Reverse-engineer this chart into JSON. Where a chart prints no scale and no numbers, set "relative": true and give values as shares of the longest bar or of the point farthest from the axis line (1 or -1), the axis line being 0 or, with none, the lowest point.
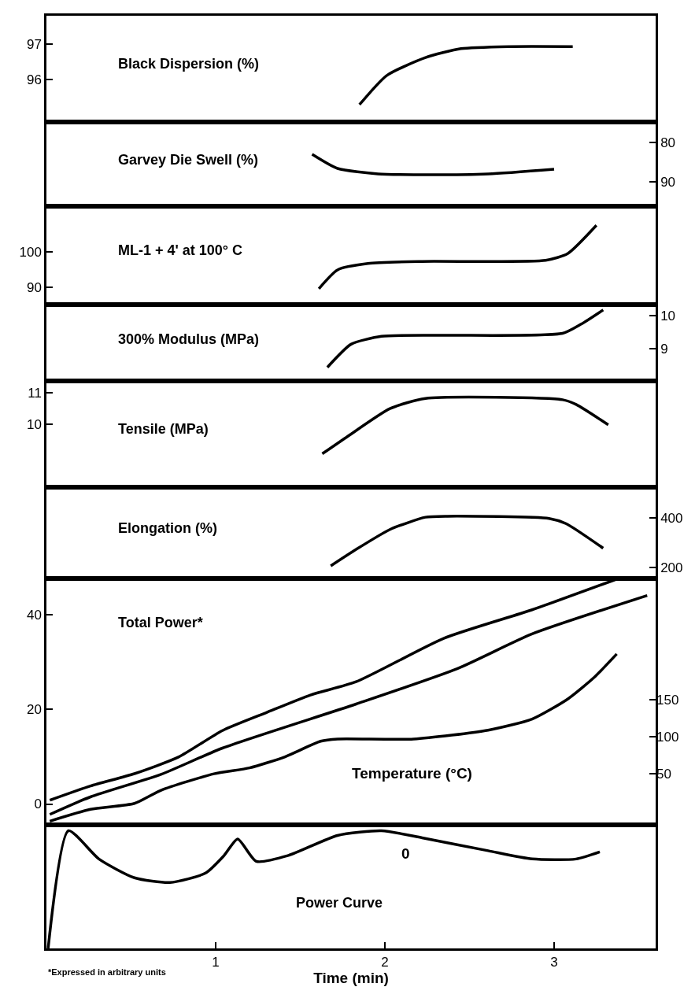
{
  "chart_data": [
    {
      "type": "line",
      "title": "Black Dispersion (%)",
      "xlim": [
        0,
        3.6
      ],
      "ylim": [
        94.8,
        97.8
      ],
      "yticks": [
        96,
        97
      ],
      "tick_labels": "y",
      "series": [
        {
          "color": "#000000",
          "x": [
            1.85,
            2.01,
            2.24,
            2.45,
            2.74,
            3.11
          ],
          "values": [
            95.29,
            96.11,
            96.62,
            96.87,
            96.93,
            96.93
          ]
        }
      ]
    },
    {
      "type": "line",
      "title": "Garvey Die Swell (%)",
      "xlim": [
        0,
        3.6
      ],
      "y2lim": [
        96.2,
        74.8
      ],
      "y2ticks": [
        80,
        90
      ],
      "tick_labels": "y",
      "series": [
        {
          "color": "#000000",
          "axis": "y2",
          "x": [
            1.57,
            1.72,
            1.96,
            2.17,
            2.61,
            3.0
          ],
          "values": [
            83,
            86.6,
            88,
            88.2,
            88,
            86.8
          ]
        }
      ]
    },
    {
      "type": "line",
      "title": "ML-1 + 4' at 100° C",
      "xlim": [
        0,
        3.6
      ],
      "ylim": [
        85.2,
        113
      ],
      "yticks": [
        90,
        100
      ],
      "tick_labels": "y",
      "series": [
        {
          "color": "#000000",
          "x": [
            1.61,
            1.72,
            1.9,
            2.22,
            2.95,
            3.08,
            3.25
          ],
          "values": [
            89.7,
            95,
            96.8,
            97.4,
            97.7,
            99.6,
            107.6
          ]
        }
      ]
    },
    {
      "type": "line",
      "title": "300% Modulus (MPa)",
      "xlim": [
        0,
        3.6
      ],
      "y2lim": [
        8.02,
        10.33
      ],
      "y2ticks": [
        9,
        10
      ],
      "tick_labels": "y",
      "series": [
        {
          "color": "#000000",
          "axis": "y2",
          "x": [
            1.66,
            1.8,
            1.98,
            2.35,
            3.05,
            3.16,
            3.29
          ],
          "values": [
            8.43,
            9.13,
            9.37,
            9.4,
            9.46,
            9.74,
            10.17
          ]
        }
      ]
    },
    {
      "type": "line",
      "title": "Tensile (MPa)",
      "xlim": [
        0,
        3.6
      ],
      "ylim": [
        8.02,
        11.36
      ],
      "yticks": [
        10,
        11
      ],
      "tick_labels": "y",
      "series": [
        {
          "color": "#000000",
          "x": [
            1.63,
            1.77,
            2.03,
            2.24,
            3.05,
            3.13,
            3.32
          ],
          "values": [
            9.07,
            9.58,
            10.49,
            10.81,
            10.77,
            10.62,
            9.98
          ]
        }
      ]
    },
    {
      "type": "line",
      "title": "Elongation (%)",
      "xlim": [
        0,
        3.6
      ],
      "y2lim": [
        155,
        526
      ],
      "y2ticks": [
        200,
        400
      ],
      "tick_labels": "y",
      "series": [
        {
          "color": "#000000",
          "axis": "y2",
          "x": [
            1.68,
            1.83,
            2.03,
            2.24,
            2.37,
            2.97,
            3.07,
            3.29
          ],
          "values": [
            206,
            273,
            354,
            404,
            408,
            399,
            378,
            278
          ]
        }
      ]
    },
    {
      "type": "line",
      "title": "Total Power*",
      "xlim": [
        0,
        3.6
      ],
      "ylim": [
        -4.4,
        47.6
      ],
      "yticks": [
        0,
        20,
        40
      ],
      "y2lim": [
        -19,
        314
      ],
      "y2ticks": [
        50,
        100,
        150
      ],
      "tick_labels": "y",
      "annotations": [
        "Temperature (°C)"
      ],
      "series": [
        {
          "color": "#000000",
          "x": [
            0.02,
            0.26,
            0.52,
            0.78,
            1.04,
            1.3,
            1.56,
            1.83,
            2.35,
            2.87,
            3.38
          ],
          "values": [
            0.8,
            3.8,
            6.4,
            9.9,
            15.5,
            19.3,
            23,
            25.8,
            35,
            41,
            47.6
          ]
        },
        {
          "color": "#000000",
          "x": [
            0.02,
            0.26,
            0.68,
            1.04,
            1.83,
            2.43,
            2.87,
            3.55
          ],
          "values": [
            -2.2,
            1.5,
            6.3,
            11.8,
            21.1,
            28.6,
            35.9,
            44.0
          ]
        },
        {
          "color": "#000000",
          "axis": "y2",
          "x": [
            0.02,
            0.26,
            0.52,
            0.68,
            0.99,
            1.2,
            1.41,
            1.62,
            1.72,
            2.17,
            2.61,
            2.87,
            3.08,
            3.24,
            3.37
          ],
          "values": [
            -14,
            2,
            10,
            28,
            50,
            58,
            73,
            94,
            97,
            97,
            109,
            124,
            151,
            181,
            212
          ]
        }
      ]
    },
    {
      "type": "line",
      "title": "Power Curve",
      "xlabel": "Time (min)",
      "xlim": [
        0,
        3.6
      ],
      "xticks": [
        1,
        2,
        3
      ],
      "relative": true,
      "tick_labels": "x",
      "annotations": [
        "0",
        "*Expressed in arbitrary units"
      ],
      "series": [
        {
          "color": "#000000",
          "x": [
            0.01,
            0.13,
            0.31,
            0.52,
            0.73,
            0.94,
            1.05,
            1.13,
            1.24,
            1.43,
            1.72,
            1.98,
            2.22,
            2.61,
            2.87,
            3.13,
            3.27
          ],
          "values": [
            0,
            1.0,
            0.76,
            0.6,
            0.56,
            0.64,
            0.79,
            0.93,
            0.74,
            0.79,
            0.96,
            1.0,
            0.94,
            0.83,
            0.76,
            0.76,
            0.82
          ]
        }
      ]
    }
  ]
}
